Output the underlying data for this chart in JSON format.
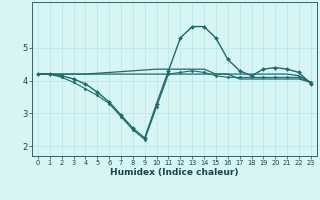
{
  "xlabel": "Humidex (Indice chaleur)",
  "bg_color": "#d8f5f5",
  "grid_color": "#b8e8e8",
  "line_color": "#1a6b6b",
  "xlim": [
    -0.5,
    23.5
  ],
  "ylim": [
    1.7,
    6.4
  ],
  "yticks": [
    2,
    3,
    4,
    5
  ],
  "xticks": [
    0,
    1,
    2,
    3,
    4,
    5,
    6,
    7,
    8,
    9,
    10,
    11,
    12,
    13,
    14,
    15,
    16,
    17,
    18,
    19,
    20,
    21,
    22,
    23
  ],
  "series": [
    {
      "x": [
        0,
        1,
        2,
        3,
        4,
        5,
        6,
        7,
        8,
        9,
        10,
        11,
        12,
        13,
        14,
        15,
        16,
        17,
        18,
        19,
        20,
        21,
        22,
        23
      ],
      "y": [
        4.2,
        4.2,
        4.15,
        4.05,
        3.9,
        3.65,
        3.35,
        2.95,
        2.55,
        2.25,
        3.3,
        4.3,
        5.3,
        5.65,
        5.65,
        5.3,
        4.65,
        4.3,
        4.15,
        4.35,
        4.4,
        4.35,
        4.25,
        3.9
      ],
      "marker": "D",
      "markersize": 2.0,
      "linewidth": 1.0
    },
    {
      "x": [
        0,
        1,
        2,
        3,
        4,
        10,
        11,
        12,
        13,
        14,
        15,
        16,
        17,
        18,
        19,
        20,
        21,
        22,
        23
      ],
      "y": [
        4.2,
        4.2,
        4.2,
        4.2,
        4.2,
        4.35,
        4.35,
        4.35,
        4.35,
        4.35,
        4.2,
        4.2,
        4.2,
        4.2,
        4.2,
        4.2,
        4.2,
        4.15,
        3.95
      ],
      "marker": null,
      "linewidth": 0.9
    },
    {
      "x": [
        0,
        1,
        2,
        3,
        4,
        14,
        15,
        16,
        17,
        18,
        19,
        20,
        21,
        22,
        23
      ],
      "y": [
        4.2,
        4.2,
        4.2,
        4.2,
        4.2,
        4.2,
        4.2,
        4.2,
        4.05,
        4.05,
        4.05,
        4.05,
        4.05,
        4.05,
        3.95
      ],
      "marker": null,
      "linewidth": 0.9
    },
    {
      "x": [
        0,
        1,
        2,
        3,
        4,
        5,
        6,
        7,
        8,
        9,
        10,
        11,
        12,
        13,
        14,
        15,
        16,
        17,
        18,
        19,
        20,
        21,
        22,
        23
      ],
      "y": [
        4.2,
        4.2,
        4.1,
        3.95,
        3.75,
        3.55,
        3.3,
        2.9,
        2.5,
        2.2,
        3.2,
        4.2,
        4.25,
        4.3,
        4.25,
        4.15,
        4.1,
        4.1,
        4.1,
        4.1,
        4.1,
        4.1,
        4.1,
        3.95
      ],
      "marker": "D",
      "markersize": 1.5,
      "linewidth": 0.8
    }
  ]
}
